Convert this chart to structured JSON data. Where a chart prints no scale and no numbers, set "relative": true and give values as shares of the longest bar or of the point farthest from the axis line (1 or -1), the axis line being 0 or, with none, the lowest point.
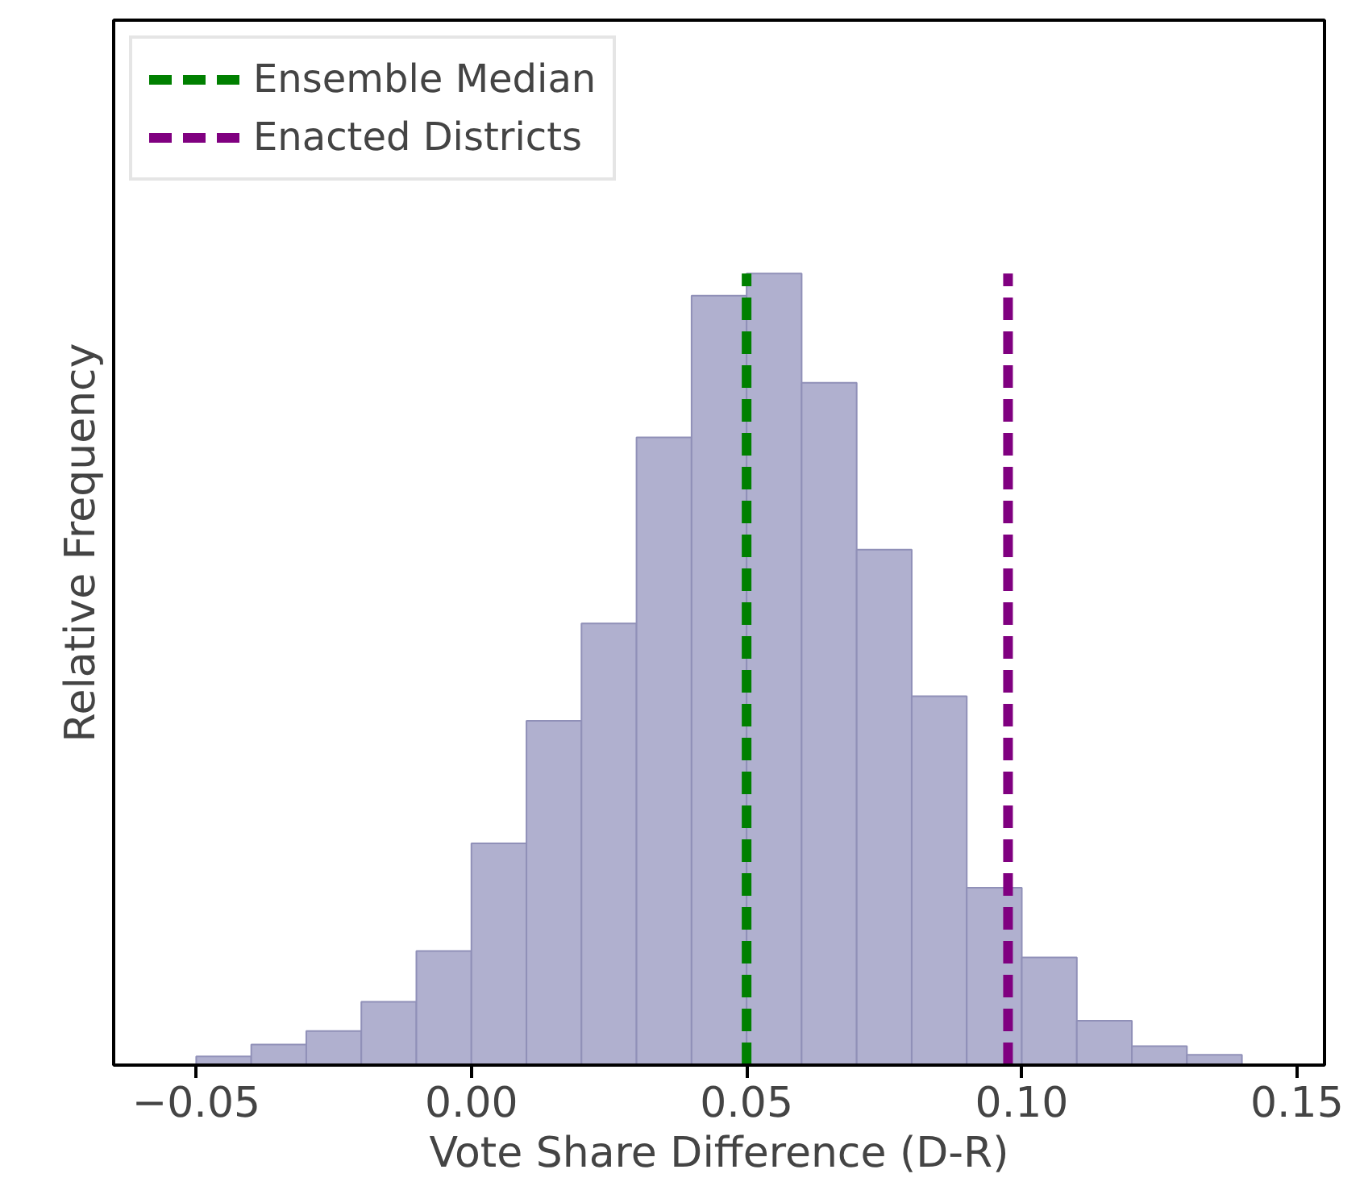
{
  "chart_data": {
    "type": "bar",
    "xlabel": "Vote Share Difference (D-R)",
    "ylabel": "Relative Frequency",
    "relative": true,
    "x": [
      -0.045,
      -0.035,
      -0.025,
      -0.015,
      -0.005,
      0.005,
      0.015,
      0.025,
      0.035,
      0.045,
      0.055,
      0.065,
      0.075,
      0.085,
      0.095,
      0.105,
      0.115,
      0.125,
      0.135
    ],
    "values": [
      0.011,
      0.026,
      0.043,
      0.08,
      0.144,
      0.28,
      0.435,
      0.558,
      0.793,
      0.972,
      1.0,
      0.862,
      0.651,
      0.466,
      0.224,
      0.136,
      0.056,
      0.024,
      0.013
    ],
    "color": "#b0b0cf",
    "xlim": [
      -0.065,
      0.155
    ],
    "xticks": [
      {
        "value": -0.05,
        "label": "−0.05"
      },
      {
        "value": 0.0,
        "label": "0.00"
      },
      {
        "value": 0.05,
        "label": "0.05"
      },
      {
        "value": 0.1,
        "label": "0.10"
      },
      {
        "value": 0.15,
        "label": "0.15"
      }
    ],
    "tick_labels": "x",
    "ref_lines": [
      {
        "axis": "x",
        "value": 0.05,
        "label": "Ensemble Median",
        "color": "#008000",
        "line_style": "dashed"
      },
      {
        "axis": "x",
        "value": 0.0975,
        "label": "Enacted Districts",
        "color": "#800080",
        "line_style": "dashed"
      }
    ],
    "legend": "top left"
  }
}
